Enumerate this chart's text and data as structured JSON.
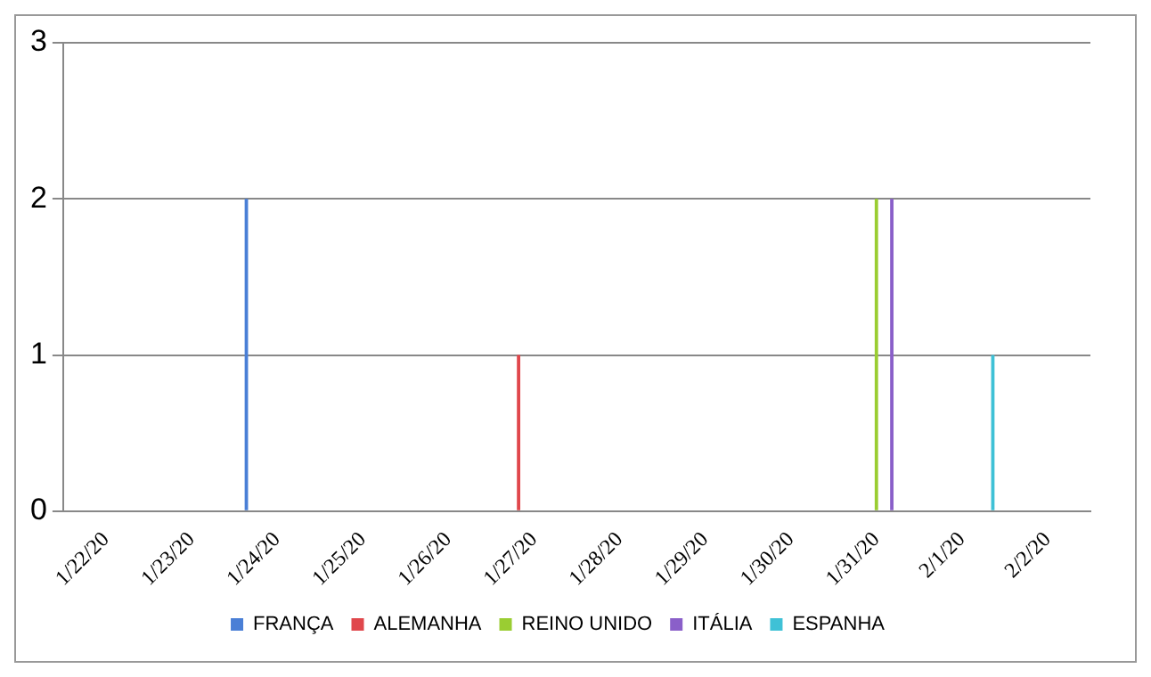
{
  "chart_data": {
    "type": "bar",
    "categories": [
      "1/22/20",
      "1/23/20",
      "1/24/20",
      "1/25/20",
      "1/26/20",
      "1/27/20",
      "1/28/20",
      "1/29/20",
      "1/30/20",
      "1/31/20",
      "2/1/20",
      "2/2/20"
    ],
    "series": [
      {
        "name": "FRANÇA",
        "color": "#4a7fd6",
        "values": [
          0,
          0,
          2,
          0,
          0,
          0,
          0,
          0,
          0,
          0,
          0,
          0
        ]
      },
      {
        "name": "ALEMANHA",
        "color": "#e0474c",
        "values": [
          0,
          0,
          0,
          0,
          0,
          1,
          0,
          0,
          0,
          0,
          0,
          0
        ]
      },
      {
        "name": "REINO UNIDO",
        "color": "#9acd32",
        "values": [
          0,
          0,
          0,
          0,
          0,
          0,
          0,
          0,
          0,
          2,
          0,
          0
        ]
      },
      {
        "name": "ITÁLIA",
        "color": "#8a5fc9",
        "values": [
          0,
          0,
          0,
          0,
          0,
          0,
          0,
          0,
          0,
          2,
          0,
          0
        ]
      },
      {
        "name": "ESPANHA",
        "color": "#3fc1d6",
        "values": [
          0,
          0,
          0,
          0,
          0,
          0,
          0,
          0,
          0,
          0,
          1,
          0
        ]
      }
    ],
    "ylim": [
      0,
      3
    ],
    "yticks": [
      0,
      1,
      2,
      3
    ],
    "grid": "y",
    "legend": "bottom"
  }
}
